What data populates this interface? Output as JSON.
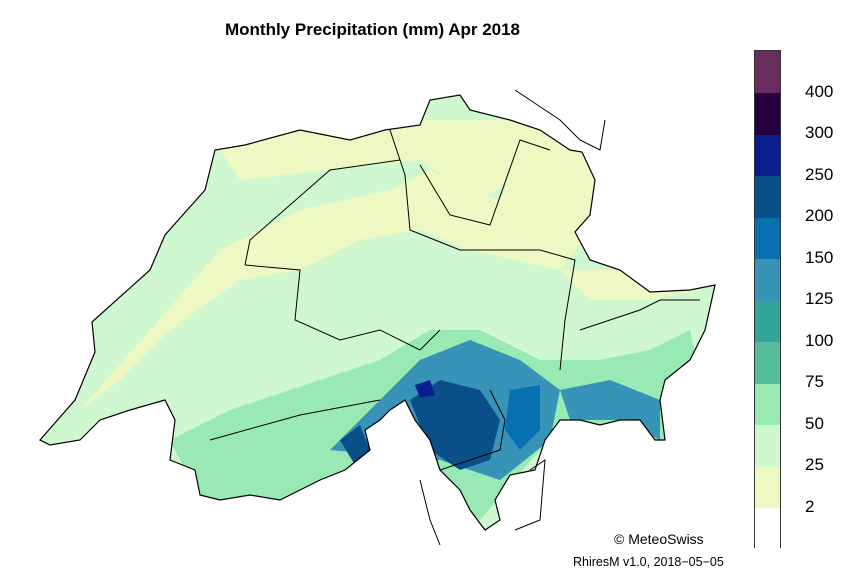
{
  "title": "Monthly Precipitation (mm) Apr 2018",
  "legend": {
    "labels": [
      "2",
      "25",
      "50",
      "75",
      "100",
      "125",
      "150",
      "200",
      "250",
      "300",
      "400"
    ],
    "colors": [
      "#ffffff",
      "#edf8c2",
      "#cff7d0",
      "#98e9b3",
      "#55bd9c",
      "#33a497",
      "#3893b8",
      "#0770b0",
      "#0a4f8a",
      "#0a1f8f",
      "#240042",
      "#6a2c5c"
    ]
  },
  "copyright": "© MeteoSwiss",
  "version": "RhiresM v1.0, 2018−05−05"
}
